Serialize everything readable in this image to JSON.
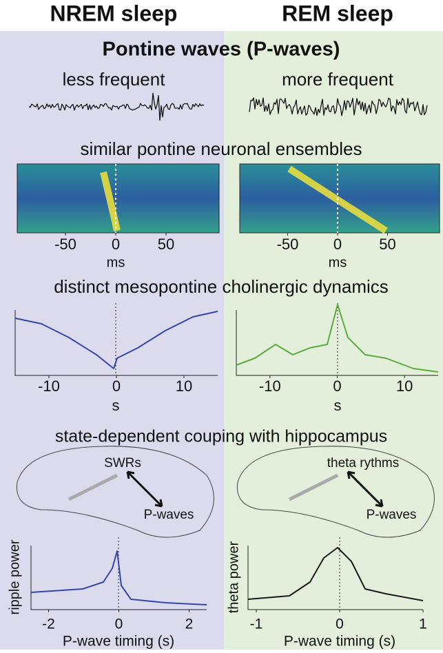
{
  "columns": [
    {
      "heading": "NREM sleep"
    },
    {
      "heading": "REM sleep"
    }
  ],
  "title": "Pontine waves (P-waves)",
  "frequency_labels": [
    "less frequent",
    "more frequent"
  ],
  "sections": [
    "similar pontine neuronal ensembles",
    "distinct mesopontine cholinergic dynamics",
    "state-dependent couping with hippocampus"
  ],
  "heatmap_axis": {
    "xlim": [
      -100,
      100
    ],
    "xticks": [
      -50,
      0,
      50
    ],
    "xlabel": "ms"
  },
  "cholinergic_axis": {
    "xlim": [
      -15,
      15
    ],
    "xticks": [
      -10,
      0,
      10
    ],
    "xlabel": "s"
  },
  "hippocampus": {
    "labels": [
      [
        "SWRs",
        "P-waves"
      ],
      [
        "theta rythms",
        "P-waves"
      ]
    ],
    "ylabels": [
      "ripple power",
      "theta power"
    ],
    "xlabel": "P-wave timing (s)",
    "axes": [
      {
        "xlim": [
          -2.5,
          2.5
        ],
        "xticks": [
          -2,
          0,
          2
        ]
      },
      {
        "xlim": [
          -1,
          1
        ],
        "xticks": [
          -1,
          0,
          1
        ]
      }
    ]
  }
}
